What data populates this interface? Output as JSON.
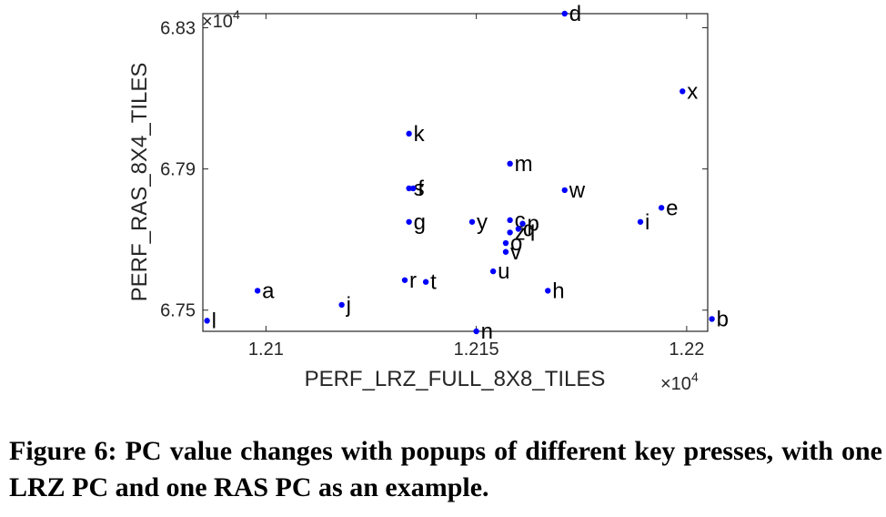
{
  "chart_data": {
    "type": "scatter",
    "xlabel": "PERF_LRZ_FULL_8X8_TILES",
    "ylabel": "PERF_RAS_8X4_TILES",
    "xlim": [
      12085,
      12205
    ],
    "ylim": [
      67440,
      68340
    ],
    "x_ticks": [
      12100,
      12150,
      12200
    ],
    "x_tick_labels": [
      "1.21",
      "1.215",
      "1.22"
    ],
    "y_ticks": [
      67500,
      67900,
      68300
    ],
    "y_tick_labels": [
      "6.75",
      "6.79",
      "6.83"
    ],
    "x_exponent": "×10",
    "x_exponent_power": "4",
    "y_exponent": "×10",
    "y_exponent_power": "4",
    "grid": false,
    "marker_color": "#0000ff",
    "points": [
      {
        "label": "l",
        "x": 12086,
        "y": 67470
      },
      {
        "label": "a",
        "x": 12098,
        "y": 67555
      },
      {
        "label": "j",
        "x": 12118,
        "y": 67515
      },
      {
        "label": "r",
        "x": 12133,
        "y": 67585
      },
      {
        "label": "t",
        "x": 12138,
        "y": 67580
      },
      {
        "label": "s",
        "x": 12134,
        "y": 67845
      },
      {
        "label": "f",
        "x": 12135,
        "y": 67845
      },
      {
        "label": "k",
        "x": 12134,
        "y": 68000
      },
      {
        "label": "g",
        "x": 12134,
        "y": 67750
      },
      {
        "label": "y",
        "x": 12149,
        "y": 67750
      },
      {
        "label": "n",
        "x": 12150,
        "y": 67440
      },
      {
        "label": "u",
        "x": 12154,
        "y": 67610
      },
      {
        "label": "m",
        "x": 12158,
        "y": 67915
      },
      {
        "label": "c",
        "x": 12158,
        "y": 67755
      },
      {
        "label": "z",
        "x": 12158,
        "y": 67720
      },
      {
        "label": "o",
        "x": 12157,
        "y": 67690
      },
      {
        "label": "v",
        "x": 12157,
        "y": 67665
      },
      {
        "label": "p",
        "x": 12161,
        "y": 67745
      },
      {
        "label": "q",
        "x": 12160,
        "y": 67730
      },
      {
        "label": "h",
        "x": 12167,
        "y": 67555
      },
      {
        "label": "d",
        "x": 12171,
        "y": 68340
      },
      {
        "label": "w",
        "x": 12171,
        "y": 67840
      },
      {
        "label": "i",
        "x": 12189,
        "y": 67750
      },
      {
        "label": "e",
        "x": 12194,
        "y": 67790
      },
      {
        "label": "x",
        "x": 12199,
        "y": 68120
      },
      {
        "label": "b",
        "x": 12206,
        "y": 67475
      }
    ]
  },
  "caption": "Figure 6: PC value changes with popups of different key presses, with one LRZ PC and one RAS PC as an example."
}
